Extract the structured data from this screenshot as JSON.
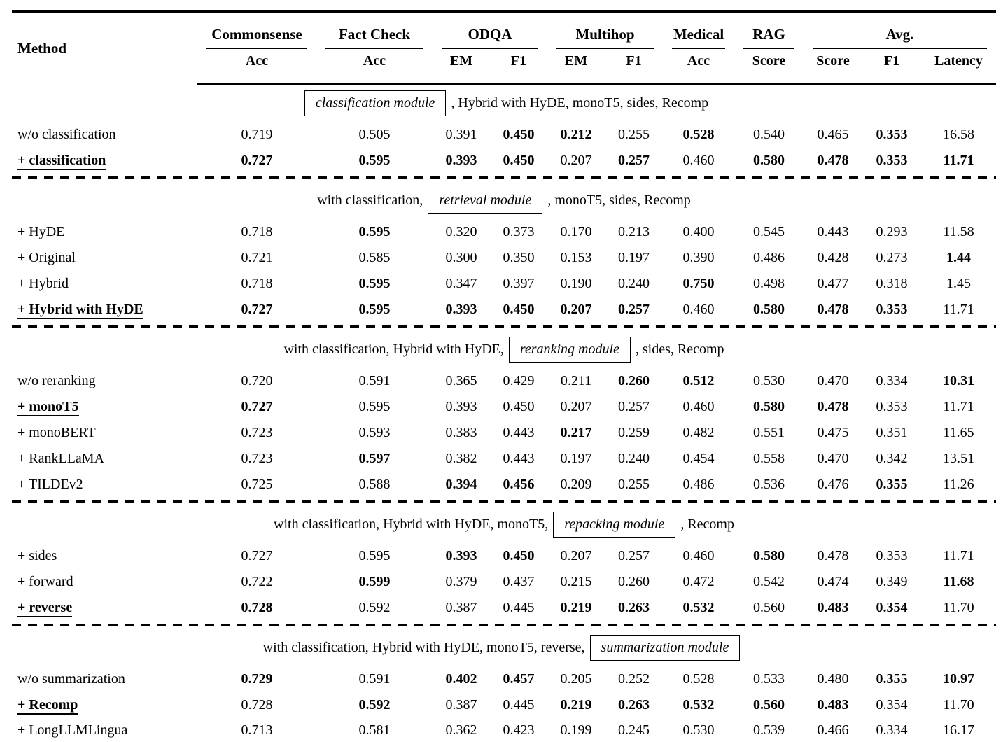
{
  "colors": {
    "text": "#000000",
    "background": "#ffffff",
    "rule": "#000000"
  },
  "table": {
    "method_header": "Method",
    "groups": [
      {
        "label": "Commonsense",
        "subs": [
          "Acc"
        ]
      },
      {
        "label": "Fact Check",
        "subs": [
          "Acc"
        ]
      },
      {
        "label": "ODQA",
        "subs": [
          "EM",
          "F1"
        ]
      },
      {
        "label": "Multihop",
        "subs": [
          "EM",
          "F1"
        ]
      },
      {
        "label": "Medical",
        "subs": [
          "Acc"
        ]
      },
      {
        "label": "RAG",
        "subs": [
          "Score"
        ]
      },
      {
        "label": "Avg.",
        "subs": [
          "Score",
          "F1",
          "Latency"
        ]
      }
    ],
    "sections": [
      {
        "intro": {
          "pre": "",
          "box": "classification module",
          "post": ", Hybrid with HyDE, monoT5, sides, Recomp"
        },
        "rows": [
          {
            "method": "w/o classification",
            "highlight": false,
            "values": [
              "0.719",
              "0.505",
              "0.391",
              "0.450",
              "0.212",
              "0.255",
              "0.528",
              "0.540",
              "0.465",
              "0.353",
              "16.58"
            ],
            "bold": [
              0,
              0,
              0,
              1,
              1,
              0,
              1,
              0,
              0,
              1,
              0
            ]
          },
          {
            "method": "+ classification",
            "highlight": true,
            "values": [
              "0.727",
              "0.595",
              "0.393",
              "0.450",
              "0.207",
              "0.257",
              "0.460",
              "0.580",
              "0.478",
              "0.353",
              "11.71"
            ],
            "bold": [
              1,
              1,
              1,
              1,
              0,
              1,
              0,
              1,
              1,
              1,
              1
            ]
          }
        ]
      },
      {
        "intro": {
          "pre": "with classification,",
          "box": "retrieval module",
          "post": ", monoT5, sides, Recomp"
        },
        "rows": [
          {
            "method": "+ HyDE",
            "highlight": false,
            "values": [
              "0.718",
              "0.595",
              "0.320",
              "0.373",
              "0.170",
              "0.213",
              "0.400",
              "0.545",
              "0.443",
              "0.293",
              "11.58"
            ],
            "bold": [
              0,
              1,
              0,
              0,
              0,
              0,
              0,
              0,
              0,
              0,
              0
            ]
          },
          {
            "method": "+ Original",
            "highlight": false,
            "values": [
              "0.721",
              "0.585",
              "0.300",
              "0.350",
              "0.153",
              "0.197",
              "0.390",
              "0.486",
              "0.428",
              "0.273",
              "1.44"
            ],
            "bold": [
              0,
              0,
              0,
              0,
              0,
              0,
              0,
              0,
              0,
              0,
              1
            ]
          },
          {
            "method": "+ Hybrid",
            "highlight": false,
            "values": [
              "0.718",
              "0.595",
              "0.347",
              "0.397",
              "0.190",
              "0.240",
              "0.750",
              "0.498",
              "0.477",
              "0.318",
              "1.45"
            ],
            "bold": [
              0,
              1,
              0,
              0,
              0,
              0,
              1,
              0,
              0,
              0,
              0
            ]
          },
          {
            "method": "+ Hybrid with HyDE",
            "highlight": true,
            "values": [
              "0.727",
              "0.595",
              "0.393",
              "0.450",
              "0.207",
              "0.257",
              "0.460",
              "0.580",
              "0.478",
              "0.353",
              "11.71"
            ],
            "bold": [
              1,
              1,
              1,
              1,
              1,
              1,
              0,
              1,
              1,
              1,
              0
            ]
          }
        ]
      },
      {
        "intro": {
          "pre": "with classification, Hybrid with HyDE,",
          "box": "reranking module",
          "post": ", sides, Recomp"
        },
        "rows": [
          {
            "method": "w/o reranking",
            "highlight": false,
            "values": [
              "0.720",
              "0.591",
              "0.365",
              "0.429",
              "0.211",
              "0.260",
              "0.512",
              "0.530",
              "0.470",
              "0.334",
              "10.31"
            ],
            "bold": [
              0,
              0,
              0,
              0,
              0,
              1,
              1,
              0,
              0,
              0,
              1
            ]
          },
          {
            "method": "+ monoT5",
            "highlight": true,
            "values": [
              "0.727",
              "0.595",
              "0.393",
              "0.450",
              "0.207",
              "0.257",
              "0.460",
              "0.580",
              "0.478",
              "0.353",
              "11.71"
            ],
            "bold": [
              1,
              0,
              0,
              0,
              0,
              0,
              0,
              1,
              1,
              0,
              0
            ]
          },
          {
            "method": "+ monoBERT",
            "highlight": false,
            "values": [
              "0.723",
              "0.593",
              "0.383",
              "0.443",
              "0.217",
              "0.259",
              "0.482",
              "0.551",
              "0.475",
              "0.351",
              "11.65"
            ],
            "bold": [
              0,
              0,
              0,
              0,
              1,
              0,
              0,
              0,
              0,
              0,
              0
            ]
          },
          {
            "method": "+ RankLLaMA",
            "highlight": false,
            "values": [
              "0.723",
              "0.597",
              "0.382",
              "0.443",
              "0.197",
              "0.240",
              "0.454",
              "0.558",
              "0.470",
              "0.342",
              "13.51"
            ],
            "bold": [
              0,
              1,
              0,
              0,
              0,
              0,
              0,
              0,
              0,
              0,
              0
            ]
          },
          {
            "method": "+ TILDEv2",
            "highlight": false,
            "values": [
              "0.725",
              "0.588",
              "0.394",
              "0.456",
              "0.209",
              "0.255",
              "0.486",
              "0.536",
              "0.476",
              "0.355",
              "11.26"
            ],
            "bold": [
              0,
              0,
              1,
              1,
              0,
              0,
              0,
              0,
              0,
              1,
              0
            ]
          }
        ]
      },
      {
        "intro": {
          "pre": "with classification, Hybrid with HyDE, monoT5,",
          "box": "repacking module",
          "post": ", Recomp"
        },
        "rows": [
          {
            "method": "+ sides",
            "highlight": false,
            "values": [
              "0.727",
              "0.595",
              "0.393",
              "0.450",
              "0.207",
              "0.257",
              "0.460",
              "0.580",
              "0.478",
              "0.353",
              "11.71"
            ],
            "bold": [
              0,
              0,
              1,
              1,
              0,
              0,
              0,
              1,
              0,
              0,
              0
            ]
          },
          {
            "method": "+ forward",
            "highlight": false,
            "values": [
              "0.722",
              "0.599",
              "0.379",
              "0.437",
              "0.215",
              "0.260",
              "0.472",
              "0.542",
              "0.474",
              "0.349",
              "11.68"
            ],
            "bold": [
              0,
              1,
              0,
              0,
              0,
              0,
              0,
              0,
              0,
              0,
              1
            ]
          },
          {
            "method": "+ reverse",
            "highlight": true,
            "values": [
              "0.728",
              "0.592",
              "0.387",
              "0.445",
              "0.219",
              "0.263",
              "0.532",
              "0.560",
              "0.483",
              "0.354",
              "11.70"
            ],
            "bold": [
              1,
              0,
              0,
              0,
              1,
              1,
              1,
              0,
              1,
              1,
              0
            ]
          }
        ]
      },
      {
        "intro": {
          "pre": "with classification, Hybrid with HyDE, monoT5, reverse,",
          "box": "summarization module",
          "post": ""
        },
        "rows": [
          {
            "method": "w/o summarization",
            "highlight": false,
            "values": [
              "0.729",
              "0.591",
              "0.402",
              "0.457",
              "0.205",
              "0.252",
              "0.528",
              "0.533",
              "0.480",
              "0.355",
              "10.97"
            ],
            "bold": [
              1,
              0,
              1,
              1,
              0,
              0,
              0,
              0,
              0,
              1,
              1
            ]
          },
          {
            "method": "+ Recomp",
            "highlight": true,
            "values": [
              "0.728",
              "0.592",
              "0.387",
              "0.445",
              "0.219",
              "0.263",
              "0.532",
              "0.560",
              "0.483",
              "0.354",
              "11.70"
            ],
            "bold": [
              0,
              1,
              0,
              0,
              1,
              1,
              1,
              1,
              1,
              0,
              0
            ]
          },
          {
            "method": "+ LongLLMLingua",
            "highlight": false,
            "values": [
              "0.713",
              "0.581",
              "0.362",
              "0.423",
              "0.199",
              "0.245",
              "0.530",
              "0.539",
              "0.466",
              "0.334",
              "16.17"
            ],
            "bold": [
              0,
              0,
              0,
              0,
              0,
              0,
              0,
              0,
              0,
              0,
              0
            ]
          }
        ]
      }
    ]
  }
}
